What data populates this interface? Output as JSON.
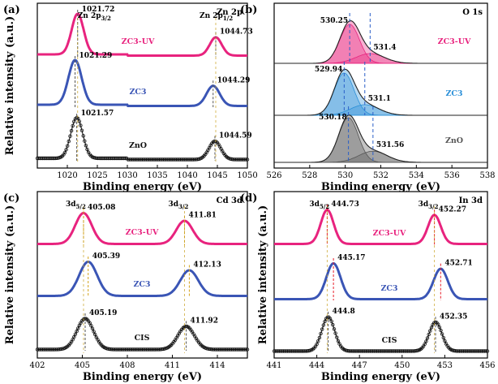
{
  "chart_data": [
    {
      "type": "line",
      "panel_label": "(a)",
      "title": "Zn 2p",
      "xlabel": "Binding energy (eV)",
      "ylabel": "Relative intensity (a.u.)",
      "xlim": [
        1015,
        1050
      ],
      "xticks": [
        1020,
        1025,
        1030,
        1035,
        1040,
        1045,
        1050
      ],
      "annotations": [
        {
          "text": "Zn 2p3/2",
          "main": "Zn 2p",
          "sub": "3/2"
        },
        {
          "text": "Zn 2p1/2",
          "main": "Zn 2p",
          "sub": "1/2"
        }
      ],
      "series": [
        {
          "name": "ZC3-UV",
          "color": "#e8237e",
          "style": "line",
          "peaks": [
            {
              "x": 1021.72,
              "label": "1021.72"
            },
            {
              "x": 1044.73,
              "label": "1044.73"
            }
          ]
        },
        {
          "name": "ZC3",
          "color": "#3a55b5",
          "style": "line",
          "peaks": [
            {
              "x": 1021.29,
              "label": "1021.29"
            },
            {
              "x": 1044.29,
              "label": "1044.29"
            }
          ]
        },
        {
          "name": "ZnO",
          "color": "#111111",
          "style": "circles",
          "peaks": [
            {
              "x": 1021.57,
              "label": "1021.57"
            },
            {
              "x": 1044.59,
              "label": "1044.59"
            }
          ]
        }
      ]
    },
    {
      "type": "line",
      "panel_label": "(b)",
      "title": "O 1s",
      "xlabel": "Binding energy (eV)",
      "ylabel": "",
      "xlim": [
        526,
        538
      ],
      "xticks": [
        526,
        528,
        530,
        532,
        534,
        536,
        538
      ],
      "series": [
        {
          "name": "ZC3-UV",
          "color": "#e8237e",
          "style": "fill",
          "peaks": [
            {
              "x": 530.25,
              "label": "530.25"
            },
            {
              "x": 531.4,
              "label": "531.4"
            }
          ]
        },
        {
          "name": "ZC3",
          "color": "#2a8fd8",
          "style": "fill",
          "peaks": [
            {
              "x": 529.94,
              "label": "529.94"
            },
            {
              "x": 531.1,
              "label": "531.1"
            }
          ]
        },
        {
          "name": "ZnO",
          "color": "#555555",
          "style": "fill",
          "peaks": [
            {
              "x": 530.18,
              "label": "530.18"
            },
            {
              "x": 531.56,
              "label": "531.56"
            }
          ]
        }
      ]
    },
    {
      "type": "line",
      "panel_label": "(c)",
      "title": "Cd 3d",
      "xlabel": "Binding energy (eV)",
      "ylabel": "Relative intensity (a.u.)",
      "xlim": [
        402,
        416
      ],
      "xticks": [
        402,
        405,
        408,
        411,
        414
      ],
      "annotations": [
        {
          "text": "3d5/2",
          "main": "3d",
          "sub": "5/2"
        },
        {
          "text": "3d3/2",
          "main": "3d",
          "sub": "3/2"
        }
      ],
      "series": [
        {
          "name": "ZC3-UV",
          "color": "#e8237e",
          "style": "line",
          "peaks": [
            {
              "x": 405.08,
              "label": "405.08"
            },
            {
              "x": 411.81,
              "label": "411.81"
            }
          ]
        },
        {
          "name": "ZC3",
          "color": "#3a55b5",
          "style": "line",
          "peaks": [
            {
              "x": 405.39,
              "label": "405.39"
            },
            {
              "x": 412.13,
              "label": "412.13"
            }
          ]
        },
        {
          "name": "CIS",
          "color": "#111111",
          "style": "circles",
          "peaks": [
            {
              "x": 405.19,
              "label": "405.19"
            },
            {
              "x": 411.92,
              "label": "411.92"
            }
          ]
        }
      ]
    },
    {
      "type": "line",
      "panel_label": "(d)",
      "title": "In 3d",
      "xlabel": "Binding energy (eV)",
      "ylabel": "Relative intensity (a.u.)",
      "xlim": [
        441,
        456
      ],
      "xticks": [
        441,
        444,
        447,
        450,
        453,
        456
      ],
      "annotations": [
        {
          "text": "3d5/2",
          "main": "3d",
          "sub": "5/2"
        },
        {
          "text": "3d3/2",
          "main": "3d",
          "sub": "3/2"
        }
      ],
      "series": [
        {
          "name": "ZC3-UV",
          "color": "#e8237e",
          "style": "line",
          "peaks": [
            {
              "x": 444.73,
              "label": "444.73"
            },
            {
              "x": 452.27,
              "label": "452.27"
            }
          ]
        },
        {
          "name": "ZC3",
          "color": "#3a55b5",
          "style": "line",
          "peaks": [
            {
              "x": 445.17,
              "label": "445.17"
            },
            {
              "x": 452.71,
              "label": "452.71"
            }
          ]
        },
        {
          "name": "CIS",
          "color": "#111111",
          "style": "circles",
          "peaks": [
            {
              "x": 444.8,
              "label": "444.8"
            },
            {
              "x": 452.35,
              "label": "452.35"
            }
          ]
        }
      ]
    }
  ]
}
